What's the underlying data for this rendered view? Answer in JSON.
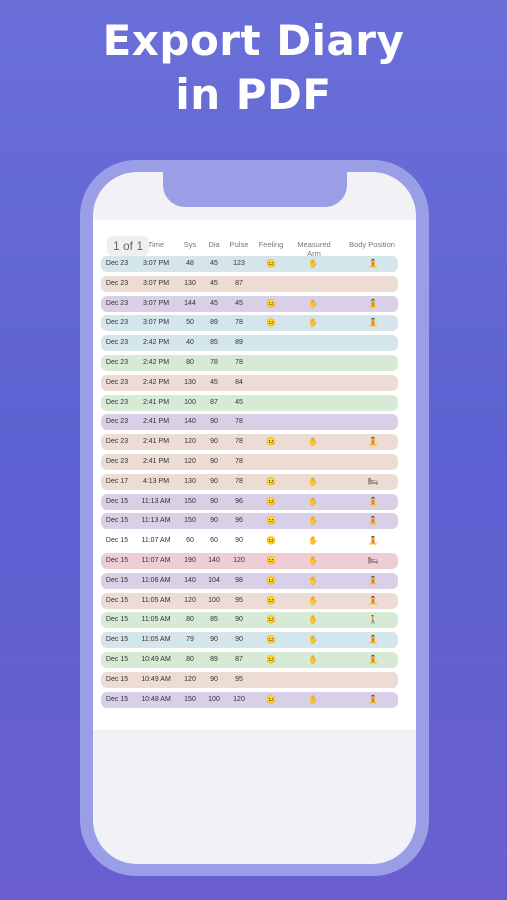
{
  "headline": {
    "line1": "Export Diary",
    "line2": "in PDF"
  },
  "page_indicator": "1 of 1",
  "columns": {
    "time": "Time",
    "sys": "Sys",
    "dia": "Dia",
    "pulse": "Pulse",
    "feeling": "Feeling",
    "arm": "Measured Arm",
    "body": "Body Position"
  },
  "row_colors": {
    "blue": "#d5e5ec",
    "peach": "#ecdcd3",
    "purple": "#d9cfe6",
    "green": "#d6ead6",
    "white": "#ffffff",
    "pink": "#efcdd6"
  },
  "icons": {
    "feeling": "smiley-face-icon",
    "arm": "hand-icon",
    "body": "body-position-icon"
  },
  "rows": [
    {
      "date": "Dec 23",
      "time": "3:07 PM",
      "sys": "48",
      "dia": "45",
      "pulse": "123",
      "color": "blue",
      "feeling": "😐",
      "arm": "✋",
      "body": "🧘"
    },
    {
      "date": "Dec 23",
      "time": "3:07 PM",
      "sys": "130",
      "dia": "45",
      "pulse": "87",
      "color": "peach",
      "feeling": "",
      "arm": "",
      "body": ""
    },
    {
      "date": "Dec 23",
      "time": "3:07 PM",
      "sys": "144",
      "dia": "45",
      "pulse": "45",
      "color": "purple",
      "feeling": "😐",
      "arm": "✋",
      "body": "🧘"
    },
    {
      "date": "Dec 23",
      "time": "3:07 PM",
      "sys": "50",
      "dia": "89",
      "pulse": "78",
      "color": "blue",
      "feeling": "😐",
      "arm": "✋",
      "body": "🧘"
    },
    {
      "date": "Dec 23",
      "time": "2:42 PM",
      "sys": "40",
      "dia": "85",
      "pulse": "89",
      "color": "blue",
      "feeling": "",
      "arm": "",
      "body": ""
    },
    {
      "date": "Dec 23",
      "time": "2:42 PM",
      "sys": "80",
      "dia": "78",
      "pulse": "78",
      "color": "green",
      "feeling": "",
      "arm": "",
      "body": ""
    },
    {
      "date": "Dec 23",
      "time": "2:42 PM",
      "sys": "130",
      "dia": "45",
      "pulse": "84",
      "color": "peach",
      "feeling": "",
      "arm": "",
      "body": ""
    },
    {
      "date": "Dec 23",
      "time": "2:41 PM",
      "sys": "100",
      "dia": "87",
      "pulse": "45",
      "color": "green",
      "feeling": "",
      "arm": "",
      "body": ""
    },
    {
      "date": "Dec 23",
      "time": "2:41 PM",
      "sys": "140",
      "dia": "90",
      "pulse": "78",
      "color": "purple",
      "feeling": "",
      "arm": "",
      "body": ""
    },
    {
      "date": "Dec 23",
      "time": "2:41 PM",
      "sys": "120",
      "dia": "90",
      "pulse": "78",
      "color": "peach",
      "feeling": "😐",
      "arm": "✋",
      "body": "🧘"
    },
    {
      "date": "Dec 23",
      "time": "2:41 PM",
      "sys": "120",
      "dia": "90",
      "pulse": "78",
      "color": "peach",
      "feeling": "",
      "arm": "",
      "body": ""
    },
    {
      "date": "Dec 17",
      "time": "4:13 PM",
      "sys": "130",
      "dia": "90",
      "pulse": "78",
      "color": "peach",
      "feeling": "😐",
      "arm": "✋",
      "body": "🛏"
    },
    {
      "date": "Dec 15",
      "time": "11:13 AM",
      "sys": "150",
      "dia": "90",
      "pulse": "96",
      "color": "purple",
      "feeling": "😐",
      "arm": "✋",
      "body": "🧘"
    },
    {
      "date": "Dec 15",
      "time": "11:13 AM",
      "sys": "150",
      "dia": "90",
      "pulse": "96",
      "color": "purple",
      "feeling": "😐",
      "arm": "✋",
      "body": "🧘"
    },
    {
      "date": "Dec 15",
      "time": "11:07 AM",
      "sys": "60",
      "dia": "60",
      "pulse": "90",
      "color": "white",
      "feeling": "😐",
      "arm": "✋",
      "body": "🧘"
    },
    {
      "date": "Dec 15",
      "time": "11:07 AM",
      "sys": "190",
      "dia": "140",
      "pulse": "120",
      "color": "pink",
      "feeling": "😐",
      "arm": "✋",
      "body": "🛏"
    },
    {
      "date": "Dec 15",
      "time": "11:06 AM",
      "sys": "140",
      "dia": "104",
      "pulse": "98",
      "color": "purple",
      "feeling": "😐",
      "arm": "✋",
      "body": "🧘"
    },
    {
      "date": "Dec 15",
      "time": "11:05 AM",
      "sys": "120",
      "dia": "100",
      "pulse": "95",
      "color": "peach",
      "feeling": "😐",
      "arm": "✋",
      "body": "🧘"
    },
    {
      "date": "Dec 15",
      "time": "11:05 AM",
      "sys": "80",
      "dia": "85",
      "pulse": "90",
      "color": "green",
      "feeling": "😐",
      "arm": "✋",
      "body": "🚶"
    },
    {
      "date": "Dec 15",
      "time": "11:05 AM",
      "sys": "79",
      "dia": "90",
      "pulse": "90",
      "color": "blue",
      "feeling": "😐",
      "arm": "✋",
      "body": "🧘"
    },
    {
      "date": "Dec 15",
      "time": "10:49 AM",
      "sys": "80",
      "dia": "89",
      "pulse": "87",
      "color": "green",
      "feeling": "😐",
      "arm": "✋",
      "body": "🧘"
    },
    {
      "date": "Dec 15",
      "time": "10:49 AM",
      "sys": "120",
      "dia": "90",
      "pulse": "95",
      "color": "peach",
      "feeling": "",
      "arm": "",
      "body": ""
    },
    {
      "date": "Dec 15",
      "time": "10:48 AM",
      "sys": "150",
      "dia": "100",
      "pulse": "120",
      "color": "purple",
      "feeling": "😐",
      "arm": "✋",
      "body": "🧘"
    }
  ]
}
